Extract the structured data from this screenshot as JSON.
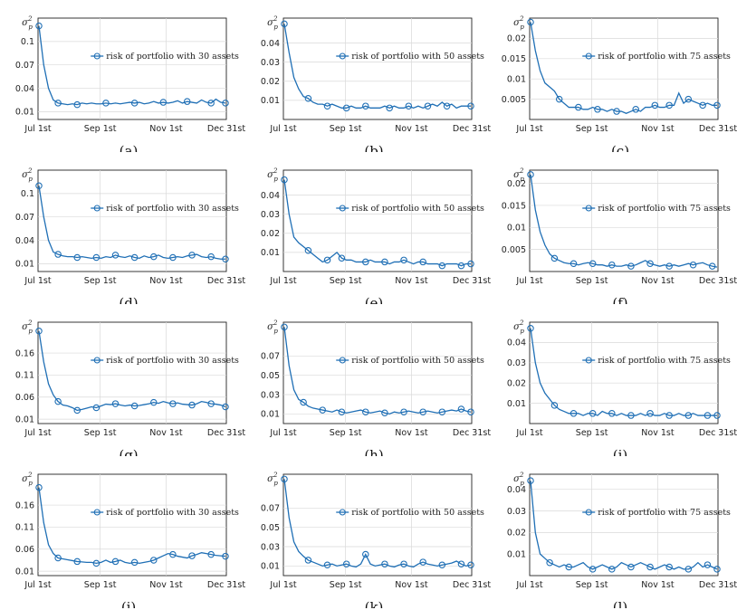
{
  "figure": {
    "line_color": "#1f6fb5",
    "ylabel": "σ_p^2",
    "xticks": [
      "Jul 1st",
      "Sep 1st",
      "Nov 1st",
      "Dec 31st"
    ]
  },
  "chart_data": [
    {
      "label": "(a)",
      "type": "line",
      "legend": "risk of portfolio with 30 assets",
      "ylim": [
        0,
        0.13
      ],
      "yticks": [
        0.01,
        0.04,
        0.07,
        0.1
      ],
      "y": [
        0.12,
        0.07,
        0.04,
        0.025,
        0.021,
        0.02,
        0.019,
        0.02,
        0.019,
        0.021,
        0.02,
        0.021,
        0.02,
        0.02,
        0.021,
        0.02,
        0.021,
        0.02,
        0.021,
        0.022,
        0.021,
        0.022,
        0.02,
        0.021,
        0.023,
        0.021,
        0.022,
        0.021,
        0.022,
        0.024,
        0.021,
        0.023,
        0.022,
        0.021,
        0.025,
        0.022,
        0.021,
        0.026,
        0.022,
        0.021
      ],
      "markers": [
        0,
        4,
        8,
        14,
        20,
        26,
        31,
        36,
        39
      ]
    },
    {
      "label": "(b)",
      "type": "line",
      "legend": "risk of portfolio with 50 assets",
      "ylim": [
        0,
        0.053
      ],
      "yticks": [
        0.01,
        0.02,
        0.03,
        0.04
      ],
      "y": [
        0.05,
        0.035,
        0.022,
        0.016,
        0.012,
        0.011,
        0.009,
        0.008,
        0.008,
        0.007,
        0.008,
        0.007,
        0.006,
        0.006,
        0.007,
        0.006,
        0.006,
        0.007,
        0.006,
        0.006,
        0.006,
        0.007,
        0.006,
        0.007,
        0.006,
        0.006,
        0.007,
        0.006,
        0.007,
        0.006,
        0.007,
        0.008,
        0.007,
        0.009,
        0.007,
        0.008,
        0.006,
        0.007,
        0.007,
        0.007
      ],
      "markers": [
        0,
        5,
        9,
        13,
        17,
        22,
        26,
        30,
        34,
        39
      ]
    },
    {
      "label": "(c)",
      "type": "line",
      "legend": "risk of portfolio with 75 assets",
      "ylim": [
        0,
        0.025
      ],
      "yticks": [
        0.005,
        0.01,
        0.015,
        0.02
      ],
      "y": [
        0.024,
        0.017,
        0.012,
        0.009,
        0.008,
        0.007,
        0.005,
        0.004,
        0.003,
        0.003,
        0.003,
        0.0025,
        0.0025,
        0.003,
        0.0025,
        0.0025,
        0.002,
        0.0025,
        0.002,
        0.002,
        0.0015,
        0.002,
        0.0025,
        0.002,
        0.003,
        0.003,
        0.0035,
        0.003,
        0.003,
        0.0035,
        0.0035,
        0.0065,
        0.004,
        0.005,
        0.0045,
        0.004,
        0.0035,
        0.004,
        0.0035,
        0.0035
      ],
      "markers": [
        0,
        6,
        10,
        14,
        18,
        22,
        26,
        29,
        33,
        36,
        39
      ]
    },
    {
      "label": "(d)",
      "type": "line",
      "legend": "risk of portfolio with 30 assets",
      "ylim": [
        0,
        0.13
      ],
      "yticks": [
        0.01,
        0.04,
        0.07,
        0.1
      ],
      "y": [
        0.11,
        0.07,
        0.04,
        0.025,
        0.022,
        0.02,
        0.019,
        0.019,
        0.018,
        0.019,
        0.018,
        0.017,
        0.018,
        0.017,
        0.019,
        0.018,
        0.021,
        0.019,
        0.018,
        0.02,
        0.018,
        0.017,
        0.02,
        0.018,
        0.019,
        0.021,
        0.018,
        0.017,
        0.018,
        0.019,
        0.018,
        0.02,
        0.021,
        0.022,
        0.019,
        0.018,
        0.019,
        0.017,
        0.016,
        0.016
      ],
      "markers": [
        0,
        4,
        8,
        12,
        16,
        20,
        24,
        28,
        32,
        36,
        39
      ]
    },
    {
      "label": "(e)",
      "type": "line",
      "legend": "risk of portfolio with 50 assets",
      "ylim": [
        0,
        0.053
      ],
      "yticks": [
        0.01,
        0.02,
        0.03,
        0.04
      ],
      "y": [
        0.048,
        0.03,
        0.018,
        0.015,
        0.013,
        0.011,
        0.009,
        0.007,
        0.005,
        0.006,
        0.008,
        0.01,
        0.007,
        0.006,
        0.006,
        0.005,
        0.005,
        0.005,
        0.006,
        0.005,
        0.005,
        0.005,
        0.004,
        0.005,
        0.005,
        0.006,
        0.005,
        0.004,
        0.005,
        0.005,
        0.004,
        0.004,
        0.004,
        0.003,
        0.004,
        0.004,
        0.004,
        0.003,
        0.004,
        0.004
      ],
      "markers": [
        0,
        5,
        9,
        12,
        17,
        21,
        25,
        29,
        33,
        37,
        39
      ]
    },
    {
      "label": "(f)",
      "type": "line",
      "legend": "risk of portfolio with 75 assets",
      "ylim": [
        0,
        0.023
      ],
      "yticks": [
        0.005,
        0.01,
        0.015,
        0.02
      ],
      "y": [
        0.022,
        0.014,
        0.009,
        0.006,
        0.004,
        0.003,
        0.0025,
        0.002,
        0.0018,
        0.0018,
        0.0015,
        0.0018,
        0.002,
        0.0018,
        0.0015,
        0.0015,
        0.0012,
        0.0015,
        0.0012,
        0.0012,
        0.0015,
        0.0012,
        0.0015,
        0.002,
        0.0025,
        0.0018,
        0.0015,
        0.0012,
        0.0015,
        0.0012,
        0.0015,
        0.0012,
        0.0015,
        0.0018,
        0.0015,
        0.0018,
        0.002,
        0.0015,
        0.0012,
        0.001
      ],
      "markers": [
        0,
        5,
        9,
        13,
        17,
        21,
        25,
        29,
        34,
        38
      ]
    },
    {
      "label": "(g)",
      "type": "line",
      "legend": "risk of portfolio with 30 assets",
      "ylim": [
        0,
        0.23
      ],
      "yticks": [
        0.01,
        0.06,
        0.11,
        0.16
      ],
      "y": [
        0.21,
        0.14,
        0.09,
        0.065,
        0.05,
        0.042,
        0.04,
        0.036,
        0.03,
        0.032,
        0.035,
        0.038,
        0.036,
        0.04,
        0.044,
        0.043,
        0.045,
        0.042,
        0.04,
        0.042,
        0.04,
        0.041,
        0.043,
        0.045,
        0.048,
        0.046,
        0.05,
        0.047,
        0.045,
        0.047,
        0.044,
        0.043,
        0.042,
        0.045,
        0.05,
        0.048,
        0.045,
        0.044,
        0.042,
        0.038
      ],
      "markers": [
        0,
        4,
        8,
        12,
        16,
        20,
        24,
        28,
        32,
        36,
        39
      ]
    },
    {
      "label": "(h)",
      "type": "line",
      "legend": "risk of portfolio with 50 assets",
      "ylim": [
        0,
        0.105
      ],
      "yticks": [
        0.01,
        0.03,
        0.05,
        0.07
      ],
      "y": [
        0.1,
        0.06,
        0.035,
        0.025,
        0.022,
        0.018,
        0.016,
        0.015,
        0.014,
        0.013,
        0.012,
        0.014,
        0.012,
        0.011,
        0.012,
        0.013,
        0.014,
        0.012,
        0.011,
        0.012,
        0.013,
        0.011,
        0.01,
        0.012,
        0.011,
        0.012,
        0.013,
        0.012,
        0.011,
        0.012,
        0.013,
        0.012,
        0.011,
        0.012,
        0.013,
        0.014,
        0.013,
        0.015,
        0.013,
        0.012
      ],
      "markers": [
        0,
        4,
        8,
        12,
        17,
        21,
        25,
        29,
        33,
        37,
        39
      ]
    },
    {
      "label": "(i)",
      "type": "line",
      "legend": "risk of portfolio with 75 assets",
      "ylim": [
        0,
        0.05
      ],
      "yticks": [
        0.01,
        0.02,
        0.03,
        0.04
      ],
      "y": [
        0.047,
        0.03,
        0.02,
        0.015,
        0.012,
        0.009,
        0.007,
        0.006,
        0.005,
        0.005,
        0.005,
        0.004,
        0.005,
        0.005,
        0.004,
        0.006,
        0.005,
        0.005,
        0.004,
        0.005,
        0.004,
        0.004,
        0.004,
        0.005,
        0.004,
        0.005,
        0.004,
        0.004,
        0.005,
        0.004,
        0.004,
        0.005,
        0.004,
        0.004,
        0.005,
        0.004,
        0.004,
        0.004,
        0.004,
        0.004
      ],
      "markers": [
        0,
        5,
        9,
        13,
        17,
        21,
        25,
        29,
        33,
        37,
        39
      ]
    },
    {
      "label": "(j)",
      "type": "line",
      "legend": "risk of portfolio with 30 assets",
      "ylim": [
        0,
        0.23
      ],
      "yticks": [
        0.01,
        0.06,
        0.11,
        0.16
      ],
      "y": [
        0.2,
        0.12,
        0.07,
        0.05,
        0.04,
        0.038,
        0.036,
        0.034,
        0.032,
        0.031,
        0.03,
        0.03,
        0.028,
        0.03,
        0.035,
        0.03,
        0.032,
        0.035,
        0.03,
        0.028,
        0.03,
        0.028,
        0.03,
        0.032,
        0.035,
        0.04,
        0.045,
        0.05,
        0.048,
        0.044,
        0.042,
        0.04,
        0.045,
        0.048,
        0.052,
        0.05,
        0.048,
        0.046,
        0.045,
        0.044
      ],
      "markers": [
        0,
        4,
        8,
        12,
        16,
        20,
        24,
        28,
        32,
        36,
        39
      ]
    },
    {
      "label": "(k)",
      "type": "line",
      "legend": "risk of portfolio with 50 assets",
      "ylim": [
        0,
        0.105
      ],
      "yticks": [
        0.01,
        0.03,
        0.05,
        0.07
      ],
      "y": [
        0.1,
        0.06,
        0.035,
        0.025,
        0.02,
        0.016,
        0.014,
        0.012,
        0.01,
        0.011,
        0.012,
        0.01,
        0.011,
        0.012,
        0.01,
        0.009,
        0.012,
        0.022,
        0.012,
        0.01,
        0.011,
        0.012,
        0.01,
        0.009,
        0.011,
        0.012,
        0.01,
        0.009,
        0.012,
        0.014,
        0.012,
        0.011,
        0.01,
        0.011,
        0.012,
        0.013,
        0.015,
        0.012,
        0.01,
        0.011
      ],
      "markers": [
        0,
        5,
        9,
        13,
        17,
        21,
        25,
        29,
        33,
        37,
        39
      ]
    },
    {
      "label": "(l)",
      "type": "line",
      "legend": "risk of portfolio with 75 assets",
      "ylim": [
        0,
        0.047
      ],
      "yticks": [
        0.01,
        0.02,
        0.03,
        0.04
      ],
      "y": [
        0.044,
        0.02,
        0.01,
        0.008,
        0.006,
        0.005,
        0.004,
        0.005,
        0.004,
        0.004,
        0.005,
        0.006,
        0.004,
        0.003,
        0.004,
        0.005,
        0.004,
        0.003,
        0.004,
        0.006,
        0.005,
        0.004,
        0.005,
        0.006,
        0.005,
        0.004,
        0.003,
        0.004,
        0.005,
        0.004,
        0.003,
        0.004,
        0.003,
        0.003,
        0.004,
        0.006,
        0.004,
        0.005,
        0.004,
        0.003
      ],
      "markers": [
        0,
        4,
        8,
        13,
        17,
        21,
        25,
        29,
        33,
        37,
        39
      ]
    }
  ]
}
